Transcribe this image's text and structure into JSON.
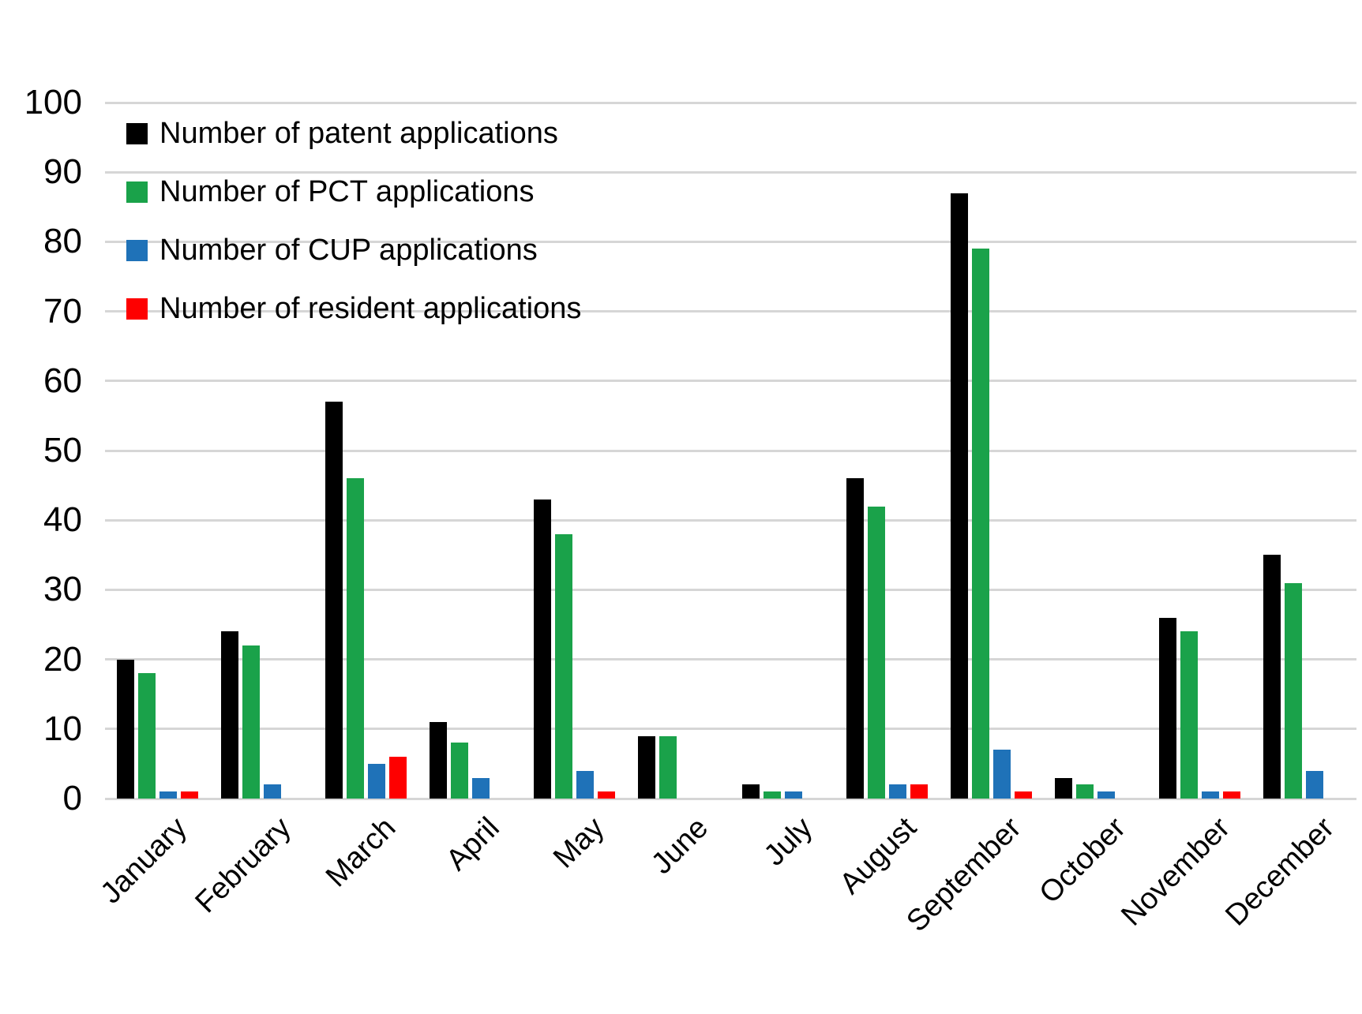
{
  "chart_data": {
    "type": "bar",
    "title": "",
    "xlabel": "",
    "ylabel": "",
    "categories": [
      "January",
      "February",
      "March",
      "April",
      "May",
      "June",
      "July",
      "August",
      "September",
      "October",
      "November",
      "December"
    ],
    "series": [
      {
        "name": "Number of patent applications",
        "color": "#000000",
        "values": [
          20,
          24,
          57,
          11,
          43,
          9,
          2,
          46,
          87,
          3,
          26,
          35
        ]
      },
      {
        "name": "Number of PCT applications",
        "color": "#1AA24A",
        "values": [
          18,
          22,
          46,
          8,
          38,
          9,
          1,
          42,
          79,
          2,
          24,
          31
        ]
      },
      {
        "name": "Number of CUP applications",
        "color": "#1F72B8",
        "values": [
          1,
          2,
          5,
          3,
          4,
          0,
          1,
          2,
          7,
          1,
          1,
          4
        ]
      },
      {
        "name": "Number of resident applications",
        "color": "#FE0000",
        "values": [
          1,
          0,
          6,
          0,
          1,
          0,
          0,
          2,
          1,
          0,
          1,
          0
        ]
      }
    ],
    "ylim": [
      0,
      100
    ],
    "ytick_step": 10,
    "ytick_labels": [
      "0",
      "10",
      "20",
      "30",
      "40",
      "50",
      "60",
      "70",
      "80",
      "90",
      "100"
    ],
    "grid": true,
    "legend_position": "top-left",
    "colors": {
      "gridline": "#D6D6D6",
      "text": "#000000",
      "background": "#FFFFFF"
    }
  }
}
